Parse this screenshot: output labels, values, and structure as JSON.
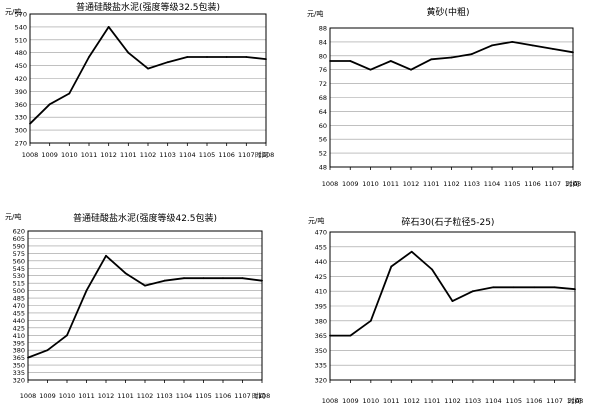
{
  "chart_data": [
    {
      "type": "line",
      "title": "普通硅酸盐水泥(强度等级32.5包装)",
      "unit": "元/吨",
      "xlabel": "时间",
      "categories": [
        "1008",
        "1009",
        "1010",
        "1011",
        "1012",
        "1101",
        "1102",
        "1103",
        "1104",
        "1105",
        "1106",
        "1107",
        "1108"
      ],
      "series": [
        {
          "values": [
            315,
            360,
            385,
            470,
            540,
            480,
            443,
            458,
            470,
            470,
            470,
            470,
            465
          ]
        }
      ],
      "yticks": [
        "270",
        "300",
        "330",
        "360",
        "390",
        "420",
        "450",
        "480",
        "510",
        "540",
        "570"
      ],
      "ylim": [
        270,
        570
      ],
      "grid": true
    },
    {
      "type": "line",
      "title": "黄砂(中粗)",
      "unit": "元/吨",
      "xlabel": "时间",
      "categories": [
        "1008",
        "1009",
        "1010",
        "1011",
        "1012",
        "1101",
        "1102",
        "1103",
        "1104",
        "1105",
        "1106",
        "1107",
        "1108"
      ],
      "series": [
        {
          "values": [
            78.5,
            78.5,
            76,
            78.5,
            76,
            79,
            79.5,
            80.5,
            83,
            84,
            83,
            82,
            81
          ]
        }
      ],
      "yticks": [
        "48",
        "52",
        "56",
        "60",
        "64",
        "68",
        "72",
        "76",
        "80",
        "84",
        "88"
      ],
      "ylim": [
        48,
        88
      ],
      "grid": true
    },
    {
      "type": "line",
      "title": "普通硅酸盐水泥(强度等级42.5包装)",
      "unit": "元/吨",
      "xlabel": "时间",
      "categories": [
        "1008",
        "1009",
        "1010",
        "1011",
        "1012",
        "1101",
        "1102",
        "1103",
        "1104",
        "1105",
        "1106",
        "1107",
        "1108"
      ],
      "series": [
        {
          "values": [
            365,
            380,
            410,
            500,
            570,
            535,
            510,
            520,
            525,
            525,
            525,
            525,
            520
          ]
        }
      ],
      "yticks": [
        "320",
        "335",
        "350",
        "365",
        "380",
        "395",
        "410",
        "425",
        "440",
        "455",
        "470",
        "485",
        "500",
        "515",
        "530",
        "545",
        "560",
        "575",
        "590",
        "605",
        "620"
      ],
      "ylim": [
        320,
        620
      ],
      "grid": true
    },
    {
      "type": "line",
      "title": "碎石30(石子粒径5-25)",
      "unit": "元/吨",
      "xlabel": "时间",
      "categories": [
        "1008",
        "1009",
        "1010",
        "1011",
        "1012",
        "1101",
        "1102",
        "1103",
        "1104",
        "1105",
        "1106",
        "1107",
        "1108"
      ],
      "series": [
        {
          "values": [
            365,
            365,
            380,
            435,
            450,
            432,
            400,
            410,
            414,
            414,
            414,
            414,
            412
          ]
        }
      ],
      "yticks": [
        "320",
        "335",
        "350",
        "365",
        "380",
        "395",
        "410",
        "425",
        "440",
        "455",
        "470"
      ],
      "ylim": [
        320,
        470
      ],
      "grid": true
    }
  ]
}
